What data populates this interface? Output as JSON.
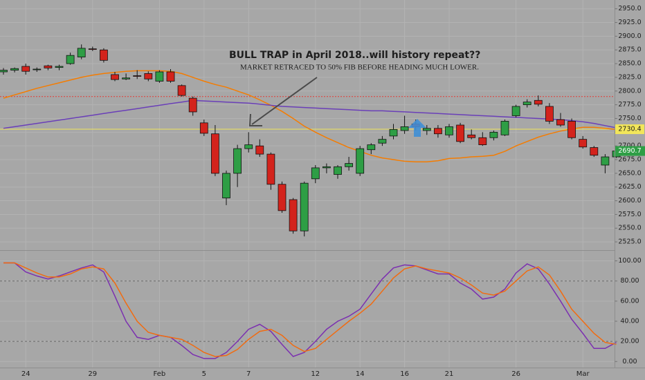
{
  "chart_data": [
    {
      "type": "candlestick",
      "categories": [
        null,
        null,
        "24",
        null,
        null,
        null,
        null,
        null,
        "29",
        null,
        null,
        null,
        null,
        null,
        "Feb",
        null,
        null,
        null,
        "5",
        null,
        null,
        null,
        "7",
        null,
        null,
        null,
        null,
        null,
        "12",
        null,
        null,
        null,
        "14",
        null,
        null,
        null,
        "16",
        null,
        null,
        null,
        "21",
        null,
        null,
        null,
        null,
        null,
        "26",
        null,
        null,
        null,
        null,
        null,
        "Mar",
        null,
        null,
        null
      ],
      "open": [
        2835,
        2838,
        2845,
        2839,
        2846,
        2843,
        2850,
        2862,
        2877,
        2875,
        2830,
        2822,
        2828,
        2832,
        2818,
        2835,
        2810,
        2787,
        2742,
        2722,
        2605,
        2650,
        2695,
        2700,
        2685,
        2630,
        2602,
        2545,
        2640,
        2660,
        2648,
        2662,
        2650,
        2693,
        2705,
        2718,
        2728,
        2740,
        2728,
        2732,
        2720,
        2738,
        2720,
        2715,
        2715,
        2720,
        2755,
        2775,
        2783,
        2772,
        2748,
        2745,
        2712,
        2697,
        2665,
        2680
      ],
      "high": [
        2842,
        2843,
        2850,
        2843,
        2848,
        2848,
        2870,
        2885,
        2881,
        2878,
        2835,
        2832,
        2838,
        2836,
        2838,
        2840,
        2812,
        2790,
        2748,
        2738,
        2655,
        2702,
        2725,
        2712,
        2688,
        2635,
        2605,
        2635,
        2665,
        2668,
        2665,
        2680,
        2700,
        2705,
        2718,
        2740,
        2755,
        2748,
        2738,
        2738,
        2740,
        2742,
        2730,
        2725,
        2728,
        2748,
        2775,
        2785,
        2792,
        2778,
        2760,
        2750,
        2718,
        2700,
        2685,
        2695
      ],
      "low": [
        2830,
        2834,
        2830,
        2835,
        2838,
        2838,
        2848,
        2858,
        2873,
        2852,
        2818,
        2820,
        2822,
        2818,
        2815,
        2815,
        2790,
        2755,
        2718,
        2645,
        2592,
        2625,
        2688,
        2680,
        2620,
        2578,
        2540,
        2535,
        2632,
        2650,
        2640,
        2655,
        2645,
        2685,
        2700,
        2712,
        2722,
        2728,
        2720,
        2715,
        2715,
        2705,
        2712,
        2700,
        2710,
        2718,
        2752,
        2770,
        2772,
        2740,
        2735,
        2712,
        2695,
        2680,
        2650,
        2678
      ],
      "close": [
        2838,
        2841,
        2836,
        2840,
        2842,
        2845,
        2865,
        2878,
        2876,
        2856,
        2821,
        2824,
        2827,
        2822,
        2835,
        2818,
        2792,
        2762,
        2723,
        2650,
        2650,
        2695,
        2702,
        2685,
        2630,
        2582,
        2545,
        2632,
        2660,
        2662,
        2662,
        2668,
        2695,
        2702,
        2712,
        2730,
        2735,
        2735,
        2732,
        2722,
        2735,
        2708,
        2715,
        2702,
        2725,
        2745,
        2772,
        2780,
        2776,
        2745,
        2738,
        2715,
        2698,
        2683,
        2680,
        2690.7
      ],
      "up_color": "#2e9e45",
      "down_color": "#d3231c",
      "series": [
        {
          "color": "#f57c00",
          "values": [
            2787,
            2793,
            2799,
            2805,
            2810,
            2815,
            2820,
            2825,
            2829,
            2832,
            2834,
            2836,
            2837,
            2837,
            2837,
            2836,
            2832,
            2825,
            2818,
            2812,
            2807,
            2800,
            2793,
            2784,
            2774,
            2763,
            2750,
            2736,
            2725,
            2715,
            2706,
            2697,
            2690,
            2683,
            2678,
            2675,
            2672,
            2671,
            2671,
            2673,
            2677,
            2678,
            2680,
            2681,
            2683,
            2690,
            2700,
            2708,
            2716,
            2722,
            2727,
            2731,
            2734,
            2734,
            2732,
            2730
          ]
        },
        {
          "color": "#6a3fb8",
          "values": [
            2732,
            2735,
            2738,
            2741,
            2744,
            2747,
            2750,
            2753,
            2756,
            2759,
            2762,
            2765,
            2768,
            2771,
            2774,
            2777,
            2780,
            2783,
            2782,
            2781,
            2780,
            2779,
            2778,
            2776,
            2774,
            2772,
            2771,
            2770,
            2769,
            2768,
            2767,
            2766,
            2765,
            2764,
            2764,
            2763,
            2762,
            2761,
            2760,
            2759,
            2758,
            2757,
            2756,
            2755,
            2754,
            2753,
            2752,
            2751,
            2750,
            2749,
            2748,
            2746,
            2744,
            2741,
            2737,
            2733
          ]
        }
      ],
      "hlines": [
        {
          "value": 2730.4,
          "color": "#f2e65a",
          "tag": 2730.4
        },
        {
          "value": 2790,
          "color": "#e53935"
        }
      ],
      "last_price": 2690.7,
      "last_color": "#2e9e45",
      "annotations": [
        "BULL TRAP  in April 2018..will history repeat??",
        "MARKET RETRACED TO 50% FIB  BEFORE HEADING MUCH LOWER."
      ],
      "ylim": [
        2510,
        2966
      ],
      "yticks": [
        {
          "value": 2525,
          "label": "2525.0"
        },
        {
          "value": 2550,
          "label": "2550.0"
        },
        {
          "value": 2575,
          "label": "2575.0"
        },
        {
          "value": 2600,
          "label": "2600.0"
        },
        {
          "value": 2625,
          "label": "2625.0"
        },
        {
          "value": 2650,
          "label": "2650.0"
        },
        {
          "value": 2675,
          "label": "2675.0"
        },
        {
          "value": 2700,
          "label": "2700.0"
        },
        {
          "value": 2725,
          "label": "2725.0"
        },
        {
          "value": 2750,
          "label": "2750.0"
        },
        {
          "value": 2775,
          "label": "2775.0"
        },
        {
          "value": 2800,
          "label": "2800.0"
        },
        {
          "value": 2825,
          "label": "2825.0"
        },
        {
          "value": 2850,
          "label": "2850.0"
        },
        {
          "value": 2875,
          "label": "2875.0"
        },
        {
          "value": 2900,
          "label": "2900.0"
        },
        {
          "value": 2925,
          "label": "2925.0"
        },
        {
          "value": 2950,
          "label": "2950.0"
        }
      ],
      "grid": true
    },
    {
      "type": "line",
      "series": [
        {
          "color": "#7b2fb0",
          "values": [
            98,
            98,
            89,
            85,
            82,
            85,
            89,
            93,
            96,
            89,
            65,
            40,
            24,
            22,
            26,
            24,
            16,
            7,
            3,
            3,
            9,
            20,
            32,
            37,
            30,
            17,
            5,
            9,
            20,
            32,
            40,
            45,
            52,
            67,
            82,
            93,
            96,
            95,
            91,
            87,
            87,
            78,
            72,
            62,
            64,
            72,
            88,
            97,
            92,
            77,
            60,
            42,
            28,
            13,
            13,
            19
          ]
        },
        {
          "color": "#f26b0f",
          "values": [
            98,
            98,
            93,
            88,
            84,
            84,
            87,
            92,
            94,
            92,
            78,
            58,
            40,
            29,
            26,
            24,
            22,
            16,
            9,
            5,
            6,
            12,
            22,
            30,
            32,
            26,
            16,
            10,
            13,
            22,
            31,
            40,
            48,
            57,
            70,
            83,
            92,
            95,
            92,
            90,
            88,
            83,
            76,
            68,
            66,
            70,
            80,
            90,
            94,
            86,
            70,
            52,
            40,
            28,
            19,
            17
          ]
        }
      ],
      "reflines": [
        80,
        20
      ],
      "ylim": [
        -6,
        110
      ],
      "yticks": [
        {
          "value": 0,
          "label": "0.00"
        },
        {
          "value": 20,
          "label": "20.00"
        },
        {
          "value": 40,
          "label": "40.00"
        },
        {
          "value": 60,
          "label": "60.00"
        },
        {
          "value": 80,
          "label": "80.00"
        },
        {
          "value": 100,
          "label": "100.00"
        }
      ],
      "grid": true
    }
  ]
}
